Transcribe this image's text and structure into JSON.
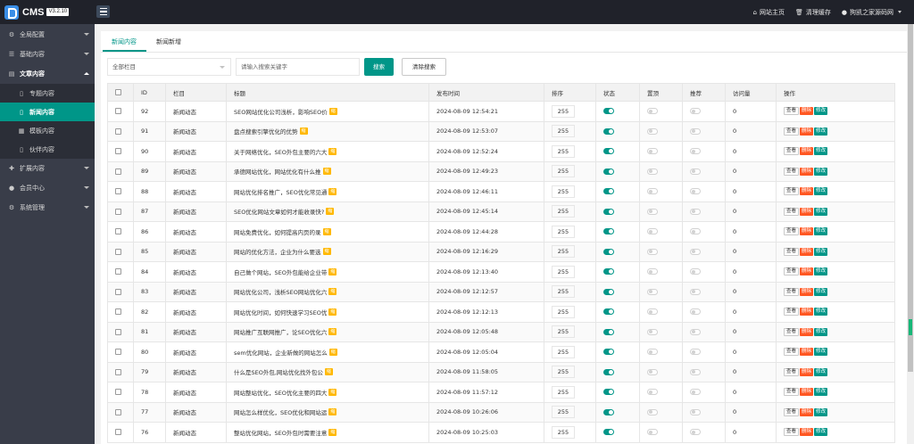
{
  "header": {
    "app_name": "CMS",
    "version": "V3.2.10",
    "links": [
      {
        "icon": "home-icon",
        "label": "网站主页"
      },
      {
        "icon": "trash-icon",
        "label": "清理缓存"
      },
      {
        "icon": "user-icon",
        "label": "狗凯之家源码网"
      }
    ]
  },
  "sidebar": {
    "items": [
      {
        "label": "全局配置",
        "icon": "gear-icon"
      },
      {
        "label": "基础内容",
        "icon": "list-icon"
      },
      {
        "label": "文章内容",
        "icon": "document-icon"
      },
      {
        "label": "扩展内容",
        "icon": "puzzle-icon"
      },
      {
        "label": "会员中心",
        "icon": "user-icon"
      },
      {
        "label": "系统管理",
        "icon": "gear-icon"
      }
    ],
    "subitems": [
      {
        "label": "专题内容",
        "icon": "file-icon"
      },
      {
        "label": "新闻内容",
        "icon": "file-icon"
      },
      {
        "label": "模板内容",
        "icon": "grid-icon"
      },
      {
        "label": "伙伴内容",
        "icon": "file-icon"
      }
    ]
  },
  "tabs": [
    {
      "label": "新闻内容",
      "active": true
    },
    {
      "label": "新闻新增",
      "active": false
    }
  ],
  "filter": {
    "category": "全部栏目",
    "search_placeholder": "请输入搜索关键字",
    "search_button": "搜索",
    "clear_button": "清除搜索"
  },
  "table": {
    "headers": [
      "ID",
      "栏目",
      "标题",
      "发布时间",
      "排序",
      "状态",
      "置顶",
      "推荐",
      "访问量",
      "操作"
    ],
    "badge_text": "缩",
    "actions": {
      "view": "查看",
      "delete": "删除",
      "edit": "修改"
    },
    "rows": [
      {
        "id": "92",
        "category": "新闻动态",
        "title": "SEO网站优化公司浅析，影响SEO价",
        "time": "2024-08-09 12:54:21",
        "sort": "255",
        "status": true,
        "top": false,
        "rec": false,
        "visits": "0"
      },
      {
        "id": "91",
        "category": "新闻动态",
        "title": "盘点搜索引擎优化的优势",
        "time": "2024-08-09 12:53:07",
        "sort": "255",
        "status": true,
        "top": false,
        "rec": false,
        "visits": "0"
      },
      {
        "id": "90",
        "category": "新闻动态",
        "title": "关于网络优化，SEO外包主要的六大",
        "time": "2024-08-09 12:52:24",
        "sort": "255",
        "status": true,
        "top": false,
        "rec": false,
        "visits": "0"
      },
      {
        "id": "89",
        "category": "新闻动态",
        "title": "承德网站优化，网站优化有什么推",
        "time": "2024-08-09 12:49:23",
        "sort": "255",
        "status": true,
        "top": false,
        "rec": false,
        "visits": "0"
      },
      {
        "id": "88",
        "category": "新闻动态",
        "title": "网站优化排名推广，SEO优化常见通",
        "time": "2024-08-09 12:46:11",
        "sort": "255",
        "status": true,
        "top": false,
        "rec": false,
        "visits": "0"
      },
      {
        "id": "87",
        "category": "新闻动态",
        "title": "SEO优化网站文章如何才能收录快?",
        "time": "2024-08-09 12:45:14",
        "sort": "255",
        "status": true,
        "top": false,
        "rec": false,
        "visits": "0"
      },
      {
        "id": "86",
        "category": "新闻动态",
        "title": "网站免费优化，如何提高内页的录",
        "time": "2024-08-09 12:44:28",
        "sort": "255",
        "status": true,
        "top": false,
        "rec": false,
        "visits": "0"
      },
      {
        "id": "85",
        "category": "新闻动态",
        "title": "网站的优化方法，企业为什么要选",
        "time": "2024-08-09 12:16:29",
        "sort": "255",
        "status": true,
        "top": false,
        "rec": false,
        "visits": "0"
      },
      {
        "id": "84",
        "category": "新闻动态",
        "title": "自己做个网站，SEO外包能给企业带",
        "time": "2024-08-09 12:13:40",
        "sort": "255",
        "status": true,
        "top": false,
        "rec": false,
        "visits": "0"
      },
      {
        "id": "83",
        "category": "新闻动态",
        "title": "网站优化公司，浅析SEO网站优化六",
        "time": "2024-08-09 12:12:57",
        "sort": "255",
        "status": true,
        "top": false,
        "rec": false,
        "visits": "0"
      },
      {
        "id": "82",
        "category": "新闻动态",
        "title": "网站优化时间，如何快速学习SEO优",
        "time": "2024-08-09 12:12:13",
        "sort": "255",
        "status": true,
        "top": false,
        "rec": false,
        "visits": "0"
      },
      {
        "id": "81",
        "category": "新闻动态",
        "title": "网站推广互联网推广，论SEO优化六",
        "time": "2024-08-09 12:05:48",
        "sort": "255",
        "status": true,
        "top": false,
        "rec": false,
        "visits": "0"
      },
      {
        "id": "80",
        "category": "新闻动态",
        "title": "sem优化网站，企业新做的网站怎么",
        "time": "2024-08-09 12:05:04",
        "sort": "255",
        "status": true,
        "top": false,
        "rec": false,
        "visits": "0"
      },
      {
        "id": "79",
        "category": "新闻动态",
        "title": "什么是SEO外包,网站优化找外包公",
        "time": "2024-08-09 11:58:05",
        "sort": "255",
        "status": true,
        "top": false,
        "rec": false,
        "visits": "0"
      },
      {
        "id": "78",
        "category": "新闻动态",
        "title": "网站整站优化，SEO优化主要的四大",
        "time": "2024-08-09 11:57:12",
        "sort": "255",
        "status": true,
        "top": false,
        "rec": false,
        "visits": "0"
      },
      {
        "id": "77",
        "category": "新闻动态",
        "title": "网站怎么样优化，SEO优化和网站运",
        "time": "2024-08-09 10:26:06",
        "sort": "255",
        "status": true,
        "top": false,
        "rec": false,
        "visits": "0"
      },
      {
        "id": "76",
        "category": "新闻动态",
        "title": "整站优化网站，SEO外包时需要注意",
        "time": "2024-08-09 10:25:03",
        "sort": "255",
        "status": true,
        "top": false,
        "rec": false,
        "visits": "0"
      }
    ]
  }
}
